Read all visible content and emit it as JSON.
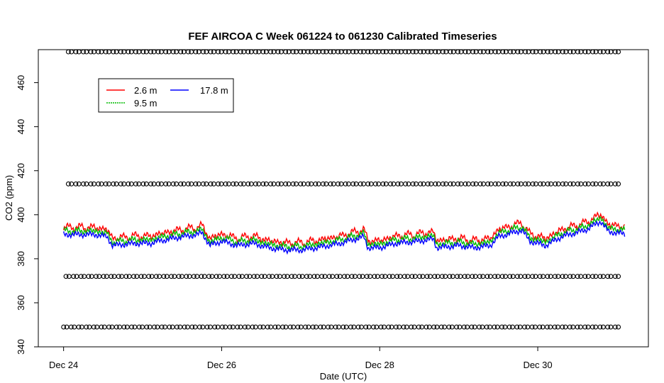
{
  "chart_data": {
    "type": "line",
    "title": "FEF AIRCOA C  Week 061224 to 061230  Calibrated Timeseries",
    "xlabel": "Date (UTC)",
    "ylabel": "CO2 (ppm)",
    "x_ticks": [
      "Dec 24",
      "Dec 26",
      "Dec 28",
      "Dec 30"
    ],
    "x_tick_days": [
      24,
      26,
      28,
      30
    ],
    "xlim_days": [
      23.68,
      31.4
    ],
    "ylim": [
      340,
      475
    ],
    "y_ticks": [
      340,
      360,
      380,
      400,
      420,
      440,
      460
    ],
    "legend_position": "top-left",
    "legend": [
      {
        "name": "2.6 m",
        "color": "#ff0000"
      },
      {
        "name": "9.5 m",
        "color": "#00bb00"
      },
      {
        "name": "17.8 m",
        "color": "#0000ff"
      }
    ],
    "line_anchors": [
      [
        24.0,
        391
      ],
      [
        24.2,
        391
      ],
      [
        24.4,
        391
      ],
      [
        24.55,
        390
      ],
      [
        24.62,
        386
      ],
      [
        24.9,
        387
      ],
      [
        25.1,
        387
      ],
      [
        25.2,
        388
      ],
      [
        25.5,
        390
      ],
      [
        25.7,
        391
      ],
      [
        25.75,
        392
      ],
      [
        25.85,
        386
      ],
      [
        26.0,
        388
      ],
      [
        26.2,
        386
      ],
      [
        26.4,
        387
      ],
      [
        26.6,
        385
      ],
      [
        26.8,
        384
      ],
      [
        27.0,
        384
      ],
      [
        27.2,
        385
      ],
      [
        27.5,
        387
      ],
      [
        27.8,
        390
      ],
      [
        27.85,
        385
      ],
      [
        28.0,
        385
      ],
      [
        28.2,
        387
      ],
      [
        28.5,
        388
      ],
      [
        28.68,
        389
      ],
      [
        28.72,
        385
      ],
      [
        29.0,
        386
      ],
      [
        29.2,
        385
      ],
      [
        29.4,
        386
      ],
      [
        29.5,
        390
      ],
      [
        29.8,
        393
      ],
      [
        29.9,
        388
      ],
      [
        30.1,
        386
      ],
      [
        30.3,
        390
      ],
      [
        30.6,
        393
      ],
      [
        30.8,
        397
      ],
      [
        30.9,
        392
      ],
      [
        31.0,
        392
      ],
      [
        31.1,
        391
      ]
    ],
    "series": [
      {
        "name": "2.6 m",
        "color": "#ff0000",
        "offset_ppm": 4
      },
      {
        "name": "9.5 m",
        "color": "#00bb00",
        "offset_ppm": 2
      },
      {
        "name": "17.8 m",
        "color": "#0000ff",
        "offset_ppm": 0
      }
    ],
    "calibration_points": [
      {
        "level": 474,
        "x_start": 24.08,
        "x_end": 31.0,
        "count": 74
      },
      {
        "level": 414,
        "x_start": 24.08,
        "x_end": 31.0,
        "count": 74
      },
      {
        "level": 372,
        "x_start": 24.05,
        "x_end": 31.0,
        "count": 74
      },
      {
        "level": 349,
        "x_start": 24.02,
        "x_end": 31.0,
        "count": 74
      }
    ]
  }
}
